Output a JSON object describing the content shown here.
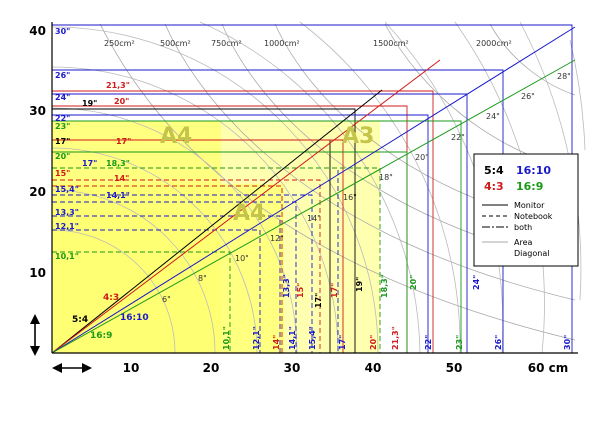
{
  "axes": {
    "x_ticks": [
      "10",
      "20",
      "30",
      "40",
      "50",
      "60 cm"
    ],
    "y_ticks": [
      "10",
      "20",
      "30",
      "40"
    ]
  },
  "paper": {
    "a4": "A4",
    "a3": "A3",
    "a4_rotated": "A4"
  },
  "area_labels": [
    "250cm²",
    "500cm²",
    "750cm²",
    "1000cm²",
    "1500cm²",
    "2000cm²"
  ],
  "ratio_labels": {
    "r54": "5:4",
    "r43": "4:3",
    "r1610": "16:10",
    "r169": "16:9"
  },
  "legend": {
    "ratios": [
      "5:4",
      "16:10",
      "4:3",
      "16:9"
    ],
    "lines": [
      "Monitor",
      "Notebook",
      "both",
      "Area",
      "Diagonal"
    ]
  },
  "diagonal_labels": [
    "6\"",
    "8\"",
    "10\"",
    "12\"",
    "14\"",
    "16\"",
    "18\"",
    "20\"",
    "22\"",
    "24\"",
    "26\"",
    "28\""
  ],
  "left_labels": [
    {
      "text": "30\"",
      "color": "#1a1acc"
    },
    {
      "text": "26\"",
      "color": "#1a1acc"
    },
    {
      "text": "21,3\"",
      "color": "#d11a1a"
    },
    {
      "text": "24\"",
      "color": "#1a1acc"
    },
    {
      "text": "20\"",
      "color": "#d11a1a"
    },
    {
      "text": "19\"",
      "color": "#000000"
    },
    {
      "text": "22\"",
      "color": "#1a1acc"
    },
    {
      "text": "23\"",
      "color": "#1a9a1a"
    },
    {
      "text": "17\"",
      "color": "#000000"
    },
    {
      "text": "17\"",
      "color": "#d11a1a"
    },
    {
      "text": "20\"",
      "color": "#1a9a1a"
    },
    {
      "text": "17\"",
      "color": "#1a1acc"
    },
    {
      "text": "18,3\"",
      "color": "#1a9a1a"
    },
    {
      "text": "15\"",
      "color": "#d11a1a"
    },
    {
      "text": "14\"",
      "color": "#d11a1a"
    },
    {
      "text": "15,4\"",
      "color": "#1a1acc"
    },
    {
      "text": "14,1\"",
      "color": "#1a1acc"
    },
    {
      "text": "13,3\"",
      "color": "#1a1acc"
    },
    {
      "text": "12,1\"",
      "color": "#1a1acc"
    },
    {
      "text": "10,1\"",
      "color": "#1a9a1a"
    }
  ],
  "bottom_labels": [
    {
      "text": "10,1\"",
      "color": "#1a9a1a"
    },
    {
      "text": "12,1\"",
      "color": "#1a1acc"
    },
    {
      "text": "14\"",
      "color": "#d11a1a"
    },
    {
      "text": "14,1\"",
      "color": "#1a1acc"
    },
    {
      "text": "13,3\"",
      "color": "#1a1acc"
    },
    {
      "text": "15\"",
      "color": "#d11a1a"
    },
    {
      "text": "15,4\"",
      "color": "#1a1acc"
    },
    {
      "text": "17\"",
      "color": "#000000"
    },
    {
      "text": "17\"",
      "color": "#d11a1a"
    },
    {
      "text": "17\"",
      "color": "#1a1acc"
    },
    {
      "text": "19\"",
      "color": "#000000"
    },
    {
      "text": "18,3\"",
      "color": "#1a9a1a"
    },
    {
      "text": "20\"",
      "color": "#d11a1a"
    },
    {
      "text": "20\"",
      "color": "#1a9a1a"
    },
    {
      "text": "21,3\"",
      "color": "#d11a1a"
    },
    {
      "text": "22\"",
      "color": "#1a1acc"
    },
    {
      "text": "23\"",
      "color": "#1a9a1a"
    },
    {
      "text": "24\"",
      "color": "#1a1acc"
    },
    {
      "text": "26\"",
      "color": "#1a1acc"
    },
    {
      "text": "30\"",
      "color": "#1a1acc"
    }
  ],
  "colors": {
    "ratio_5_4": "#000000",
    "ratio_4_3": "#d11a1a",
    "ratio_16_10": "#1a1acc",
    "ratio_16_9": "#1a9a1a",
    "paper_fill": "#ffffaa",
    "paper_text": "#c8c850"
  }
}
